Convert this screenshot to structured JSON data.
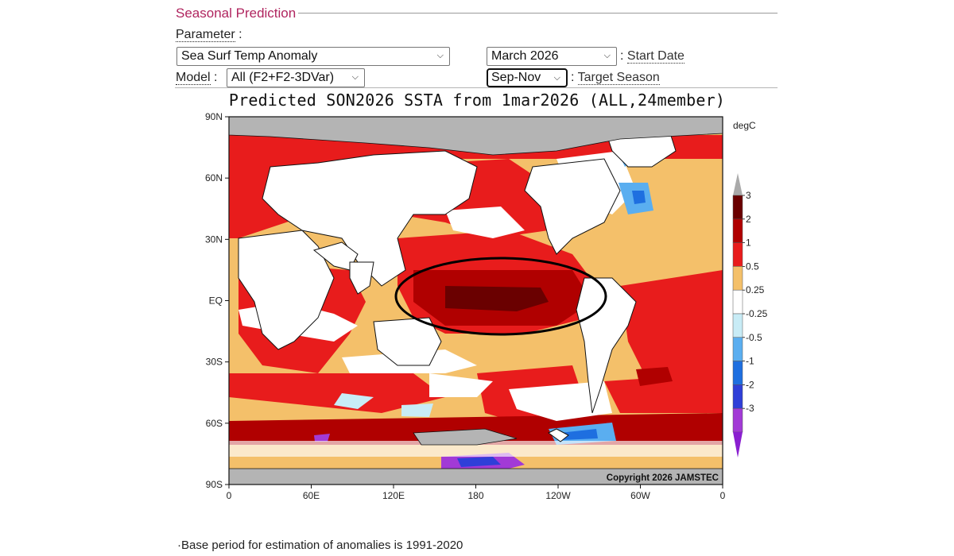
{
  "section": {
    "title": "Seasonal Prediction"
  },
  "form": {
    "parameter_label": "Parameter",
    "parameter_value": "Sea Surf Temp Anomaly",
    "start_date_value": "March 2026",
    "start_date_label": "Start Date",
    "model_label": "Model",
    "model_value": "All (F2+F2-3DVar)",
    "target_season_value": "Sep-Nov",
    "target_season_label": "Target Season",
    "colon": ":"
  },
  "map": {
    "title": "Predicted SON2026 SSTA from 1mar2026 (ALL,24member)",
    "unit": "degC",
    "copyright": "Copyright 2026 JAMSTEC",
    "lat_labels": [
      "90N",
      "60N",
      "30N",
      "EQ",
      "30S",
      "60S",
      "90S"
    ],
    "lon_labels": [
      "0",
      "60E",
      "120E",
      "180",
      "120W",
      "60W",
      "0"
    ],
    "colorbar": {
      "tick_labels": [
        "3",
        "2",
        "1",
        "0.5",
        "0.25",
        "-0.25",
        "-0.5",
        "-1",
        "-2",
        "-3"
      ],
      "colors": [
        "#6a0000",
        "#b00000",
        "#e81c1c",
        "#f4c06a",
        "#ffffff",
        "#c8ecf6",
        "#5aaef0",
        "#1e6fe0",
        "#2f3fd8",
        "#a23ad6"
      ],
      "overflow_high": "#aaaaaa",
      "overflow_low": "#8a1fd0"
    },
    "highlight": "Equatorial Pacific warm anomaly",
    "colors": {
      "land": "#ffffff",
      "ice": "#b4b4b4",
      "border": "#111111",
      "circle": "#000000"
    }
  },
  "footnote": "Base period for estimation of anomalies is 1991-2020"
}
